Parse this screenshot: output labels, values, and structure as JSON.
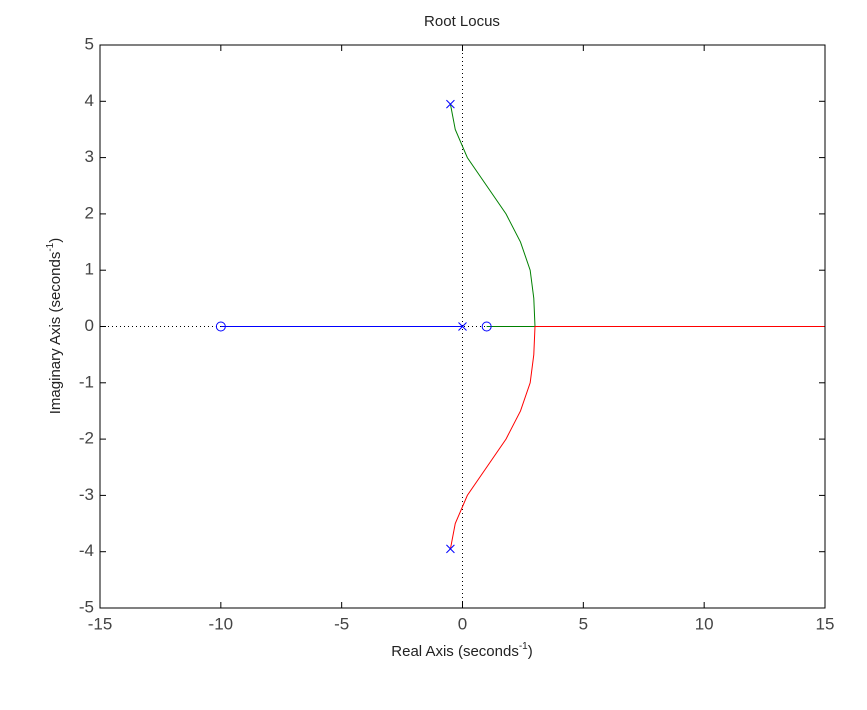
{
  "chart_data": {
    "type": "root-locus",
    "title": "Root Locus",
    "xlabel": {
      "text": "Real Axis (seconds",
      "sup": "-1",
      "close": ")"
    },
    "ylabel": {
      "text": "Imaginary Axis (seconds",
      "sup": "-1",
      "close": ")"
    },
    "xlim": [
      -15,
      15
    ],
    "ylim": [
      -5,
      5
    ],
    "xticks": [
      -15,
      -10,
      -5,
      0,
      5,
      10,
      15
    ],
    "yticks": [
      -5,
      -4,
      -3,
      -2,
      -1,
      0,
      1,
      2,
      3,
      4,
      5
    ],
    "series": [
      {
        "color": "#0000ff",
        "x": [
          0,
          -10
        ],
        "values": [
          0,
          0
        ]
      },
      {
        "color": "#008000",
        "x": [
          -0.5,
          -0.3,
          0.2,
          1.0,
          1.8,
          2.4,
          2.8,
          2.95,
          3.0,
          1.0
        ],
        "values": [
          3.95,
          3.5,
          3.0,
          2.5,
          2.0,
          1.5,
          1.0,
          0.5,
          0,
          0
        ]
      },
      {
        "color": "#ff0000",
        "x": [
          -0.5,
          -0.3,
          0.2,
          1.0,
          1.8,
          2.4,
          2.8,
          2.95,
          3.0,
          15
        ],
        "values": [
          -3.95,
          -3.5,
          -3.0,
          -2.5,
          -2.0,
          -1.5,
          -1.0,
          -0.5,
          0,
          0
        ]
      }
    ],
    "poles": {
      "color": "#0000ff",
      "x": [
        -0.5,
        -0.5,
        0
      ],
      "values": [
        3.95,
        -3.95,
        0
      ]
    },
    "zeros": {
      "color": "#0000ff",
      "x": [
        -10,
        1
      ],
      "values": [
        0,
        0
      ]
    }
  }
}
